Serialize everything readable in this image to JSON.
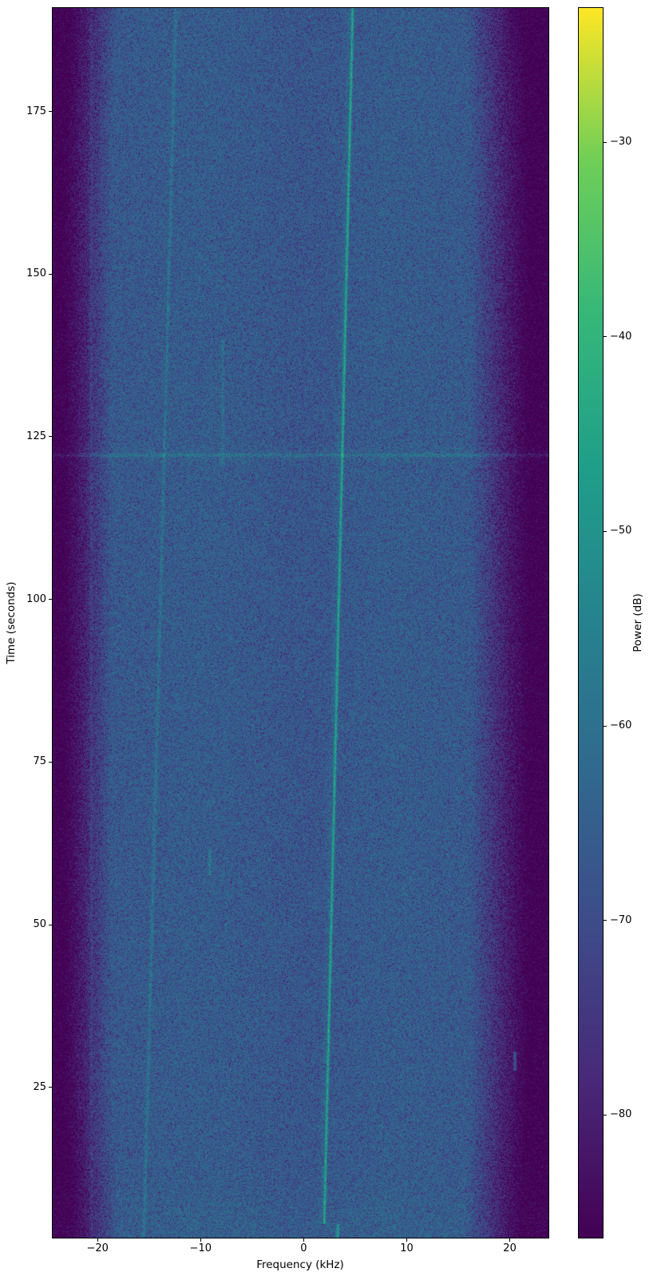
{
  "figure": {
    "xlabel": "Frequency (kHz)",
    "ylabel": "Time (seconds)",
    "colorbar_label": "Power (dB)"
  },
  "chart_data": {
    "type": "heatmap",
    "subtype": "spectrogram",
    "title": "",
    "xlabel": "Frequency (kHz)",
    "ylabel": "Time (seconds)",
    "colorbar_label": "Power (dB)",
    "xlim": [
      -24.35,
      23.75
    ],
    "ylim": [
      1.9,
      190.9
    ],
    "clim": [
      -86.3,
      -23.1
    ],
    "x_ticks": [
      {
        "value": -20,
        "label": "−20"
      },
      {
        "value": -10,
        "label": "−10"
      },
      {
        "value": 0,
        "label": "0"
      },
      {
        "value": 10,
        "label": "10"
      },
      {
        "value": 20,
        "label": "20"
      }
    ],
    "y_ticks": [
      {
        "value": 25,
        "label": "25"
      },
      {
        "value": 50,
        "label": "50"
      },
      {
        "value": 75,
        "label": "75"
      },
      {
        "value": 100,
        "label": "100"
      },
      {
        "value": 125,
        "label": "125"
      },
      {
        "value": 150,
        "label": "150"
      },
      {
        "value": 175,
        "label": "175"
      }
    ],
    "colorbar_ticks": [
      {
        "value": -30,
        "label": "−30"
      },
      {
        "value": -40,
        "label": "−40"
      },
      {
        "value": -50,
        "label": "−50"
      },
      {
        "value": -60,
        "label": "−60"
      },
      {
        "value": -70,
        "label": "−70"
      },
      {
        "value": -80,
        "label": "−80"
      }
    ],
    "colormap": "viridis",
    "viridis_stops": [
      [
        68,
        1,
        84
      ],
      [
        72,
        40,
        120
      ],
      [
        62,
        74,
        137
      ],
      [
        49,
        104,
        142
      ],
      [
        38,
        130,
        142
      ],
      [
        31,
        158,
        137
      ],
      [
        53,
        183,
        121
      ],
      [
        110,
        206,
        88
      ],
      [
        253,
        231,
        37
      ]
    ],
    "noise_floor_db": -64.5,
    "band_edges": {
      "left_passband_khz": -18.6,
      "right_passband_khz": 16.2,
      "stopband_attenuation_db": 22
    },
    "features": [
      {
        "name": "main-carrier-drift",
        "type": "line",
        "freq_khz_start": 2.0,
        "freq_khz_end": 4.77,
        "time_s_start": 4.0,
        "time_s_end": 190.9,
        "power_db": -47
      },
      {
        "name": "main-carrier-start-offset",
        "type": "segment",
        "freq_khz": 3.32,
        "time_s_start": 1.9,
        "time_s_end": 4.0,
        "power_db": -50
      },
      {
        "name": "secondary-carrier-drift",
        "type": "line",
        "freq_khz_start": -15.5,
        "freq_khz_end": -12.4,
        "time_s_start": 1.9,
        "time_s_end": 190.9,
        "power_db": -58
      },
      {
        "name": "edge-tone",
        "type": "line",
        "freq_khz_start": -20.6,
        "freq_khz_end": -20.6,
        "time_s_start": 1.9,
        "time_s_end": 190.9,
        "power_db": -61
      },
      {
        "name": "wideband-pulse",
        "type": "horizontal-band",
        "time_s": 122.2,
        "power_db": -60
      },
      {
        "name": "burst-1",
        "type": "segment",
        "freq_khz": -7.85,
        "time_s_start": 120.3,
        "time_s_end": 140.0,
        "power_db": -60
      },
      {
        "name": "burst-2",
        "type": "segment",
        "freq_khz": -9.1,
        "time_s_start": 57.5,
        "time_s_end": 61.5,
        "power_db": -56
      },
      {
        "name": "burst-3",
        "type": "segment",
        "freq_khz": 20.5,
        "time_s_start": 27.5,
        "time_s_end": 30.5,
        "power_db": -60
      }
    ]
  }
}
